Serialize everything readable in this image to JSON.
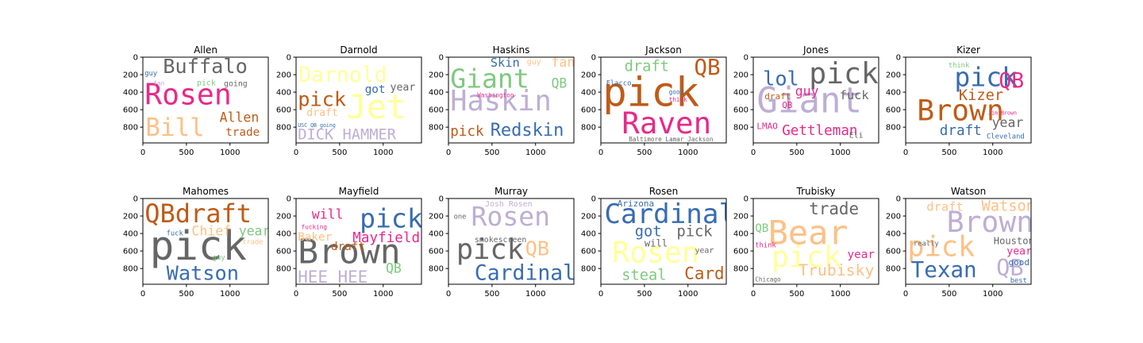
{
  "chart_data": {
    "type": "wordcloud-grid",
    "panel_extent": {
      "x": [
        0,
        1440
      ],
      "y": [
        0,
        980
      ]
    },
    "x_ticks": [
      0,
      500,
      1000
    ],
    "y_ticks": [
      0,
      200,
      400,
      600,
      800
    ],
    "panels": [
      {
        "title": "Allen",
        "words": [
          {
            "text": "Rosen",
            "x": 20,
            "y": 540,
            "size": 330,
            "color": "#e7298a"
          },
          {
            "text": "Buffalo",
            "x": 230,
            "y": 180,
            "size": 230,
            "color": "#666666"
          },
          {
            "text": "Bill",
            "x": 30,
            "y": 900,
            "size": 280,
            "color": "#fdc086"
          },
          {
            "text": "Allen",
            "x": 880,
            "y": 740,
            "size": 150,
            "color": "#bf5b17"
          },
          {
            "text": "trade",
            "x": 950,
            "y": 900,
            "size": 130,
            "color": "#bf5b17"
          },
          {
            "text": "pick",
            "x": 620,
            "y": 320,
            "size": 90,
            "color": "#7fc97f"
          },
          {
            "text": "going",
            "x": 930,
            "y": 330,
            "size": 90,
            "color": "#666666"
          },
          {
            "text": "guy",
            "x": 20,
            "y": 210,
            "size": 80,
            "color": "#386cb0"
          },
          {
            "text": "fan",
            "x": 120,
            "y": 320,
            "size": 70,
            "color": "#beaed4"
          }
        ]
      },
      {
        "title": "Darnold",
        "words": [
          {
            "text": "Darnold",
            "x": 30,
            "y": 280,
            "size": 240,
            "color": "#ffff99"
          },
          {
            "text": "Jet",
            "x": 580,
            "y": 700,
            "size": 380,
            "color": "#ffff99"
          },
          {
            "text": "pick",
            "x": 20,
            "y": 560,
            "size": 230,
            "color": "#bf5b17"
          },
          {
            "text": "got",
            "x": 790,
            "y": 410,
            "size": 130,
            "color": "#386cb0"
          },
          {
            "text": "year",
            "x": 1080,
            "y": 380,
            "size": 120,
            "color": "#666666"
          },
          {
            "text": "DICK HAMMER",
            "x": 20,
            "y": 940,
            "size": 170,
            "color": "#beaed4"
          },
          {
            "text": "USC QB going",
            "x": 20,
            "y": 800,
            "size": 60,
            "color": "#386cb0"
          },
          {
            "text": "draft",
            "x": 120,
            "y": 670,
            "size": 120,
            "color": "#fdc086"
          }
        ]
      },
      {
        "title": "Haskins",
        "words": [
          {
            "text": "Haskin",
            "x": 20,
            "y": 610,
            "size": 320,
            "color": "#beaed4"
          },
          {
            "text": "Giant",
            "x": 20,
            "y": 350,
            "size": 300,
            "color": "#7fc97f"
          },
          {
            "text": "Skin",
            "x": 480,
            "y": 110,
            "size": 140,
            "color": "#386cb0"
          },
          {
            "text": "Redskin",
            "x": 480,
            "y": 900,
            "size": 200,
            "color": "#386cb0"
          },
          {
            "text": "pick",
            "x": 20,
            "y": 900,
            "size": 160,
            "color": "#bf5b17"
          },
          {
            "text": "QB",
            "x": 1180,
            "y": 350,
            "size": 150,
            "color": "#7fc97f"
          },
          {
            "text": "fan",
            "x": 1180,
            "y": 110,
            "size": 150,
            "color": "#fdc086"
          },
          {
            "text": "Washington",
            "x": 330,
            "y": 460,
            "size": 70,
            "color": "#e7298a"
          },
          {
            "text": "guy",
            "x": 900,
            "y": 80,
            "size": 90,
            "color": "#fdc086"
          }
        ]
      },
      {
        "title": "Jackson",
        "words": [
          {
            "text": "pick",
            "x": 20,
            "y": 560,
            "size": 460,
            "color": "#bf5b17"
          },
          {
            "text": "Raven",
            "x": 240,
            "y": 870,
            "size": 340,
            "color": "#e7298a"
          },
          {
            "text": "QB",
            "x": 1070,
            "y": 200,
            "size": 250,
            "color": "#bf5b17"
          },
          {
            "text": "draft",
            "x": 270,
            "y": 160,
            "size": 170,
            "color": "#7fc97f"
          },
          {
            "text": "Flacco",
            "x": 60,
            "y": 320,
            "size": 80,
            "color": "#386cb0"
          },
          {
            "text": "Baltimore Lamar Jackson",
            "x": 320,
            "y": 960,
            "size": 70,
            "color": "#666666"
          },
          {
            "text": "good",
            "x": 780,
            "y": 420,
            "size": 70,
            "color": "#386cb0"
          },
          {
            "text": "think",
            "x": 780,
            "y": 510,
            "size": 70,
            "color": "#e7298a"
          }
        ]
      },
      {
        "title": "Jones",
        "words": [
          {
            "text": "Giant",
            "x": 40,
            "y": 630,
            "size": 400,
            "color": "#beaed4"
          },
          {
            "text": "pick",
            "x": 640,
            "y": 300,
            "size": 330,
            "color": "#666666"
          },
          {
            "text": "lol",
            "x": 110,
            "y": 320,
            "size": 230,
            "color": "#386cb0"
          },
          {
            "text": "guy",
            "x": 480,
            "y": 440,
            "size": 150,
            "color": "#e7298a"
          },
          {
            "text": "fuck",
            "x": 990,
            "y": 480,
            "size": 140,
            "color": "#666666"
          },
          {
            "text": "draft",
            "x": 130,
            "y": 480,
            "size": 100,
            "color": "#bf5b17"
          },
          {
            "text": "QB",
            "x": 330,
            "y": 580,
            "size": 100,
            "color": "#e7298a"
          },
          {
            "text": "LMAO",
            "x": 40,
            "y": 820,
            "size": 100,
            "color": "#e7298a"
          },
          {
            "text": "Gettleman",
            "x": 330,
            "y": 890,
            "size": 160,
            "color": "#e7298a"
          },
          {
            "text": "Eli",
            "x": 1100,
            "y": 920,
            "size": 90,
            "color": "#666666"
          }
        ]
      },
      {
        "title": "Kizer",
        "words": [
          {
            "text": "Brown",
            "x": 130,
            "y": 720,
            "size": 330,
            "color": "#bf5b17"
          },
          {
            "text": "pick",
            "x": 560,
            "y": 330,
            "size": 300,
            "color": "#386cb0"
          },
          {
            "text": "QB",
            "x": 1070,
            "y": 350,
            "size": 240,
            "color": "#e7298a"
          },
          {
            "text": "Kizer",
            "x": 610,
            "y": 490,
            "size": 170,
            "color": "#bf5b17"
          },
          {
            "text": "year",
            "x": 990,
            "y": 800,
            "size": 150,
            "color": "#666666"
          },
          {
            "text": "draft",
            "x": 390,
            "y": 890,
            "size": 160,
            "color": "#386cb0"
          },
          {
            "text": "Cleveland",
            "x": 930,
            "y": 930,
            "size": 80,
            "color": "#386cb0"
          },
          {
            "text": "think",
            "x": 490,
            "y": 120,
            "size": 80,
            "color": "#7fc97f"
          },
          {
            "text": "Jim Brown",
            "x": 950,
            "y": 660,
            "size": 60,
            "color": "#e7298a"
          }
        ]
      },
      {
        "title": "Mahomes",
        "words": [
          {
            "text": "pick",
            "x": 80,
            "y": 700,
            "size": 460,
            "color": "#666666"
          },
          {
            "text": "QBdraft",
            "x": 20,
            "y": 270,
            "size": 290,
            "color": "#bf5b17"
          },
          {
            "text": "Watson",
            "x": 270,
            "y": 930,
            "size": 230,
            "color": "#386cb0"
          },
          {
            "text": "Chief",
            "x": 560,
            "y": 420,
            "size": 150,
            "color": "#fdc086"
          },
          {
            "text": "year",
            "x": 1100,
            "y": 420,
            "size": 150,
            "color": "#7fc97f"
          },
          {
            "text": "guy",
            "x": 800,
            "y": 700,
            "size": 80,
            "color": "#7fc97f"
          },
          {
            "text": "fuck",
            "x": 270,
            "y": 420,
            "size": 80,
            "color": "#386cb0"
          },
          {
            "text": "trade",
            "x": 1140,
            "y": 520,
            "size": 80,
            "color": "#fdc086"
          }
        ]
      },
      {
        "title": "Mayfield",
        "words": [
          {
            "text": "Brown",
            "x": 20,
            "y": 740,
            "size": 390,
            "color": "#666666"
          },
          {
            "text": "pick",
            "x": 730,
            "y": 330,
            "size": 300,
            "color": "#386cb0"
          },
          {
            "text": "Mayfield",
            "x": 650,
            "y": 500,
            "size": 160,
            "color": "#e7298a"
          },
          {
            "text": "will",
            "x": 180,
            "y": 230,
            "size": 150,
            "color": "#e7298a"
          },
          {
            "text": "Baker",
            "x": 20,
            "y": 480,
            "size": 130,
            "color": "#fdc086"
          },
          {
            "text": "draft",
            "x": 400,
            "y": 590,
            "size": 130,
            "color": "#bf5b17"
          },
          {
            "text": "HEE HEE",
            "x": 20,
            "y": 960,
            "size": 190,
            "color": "#beaed4"
          },
          {
            "text": "QB",
            "x": 1030,
            "y": 850,
            "size": 150,
            "color": "#7fc97f"
          },
          {
            "text": "fucking",
            "x": 60,
            "y": 350,
            "size": 70,
            "color": "#e7298a"
          }
        ]
      },
      {
        "title": "Murray",
        "words": [
          {
            "text": "Rosen",
            "x": 260,
            "y": 310,
            "size": 300,
            "color": "#beaed4"
          },
          {
            "text": "pick",
            "x": 90,
            "y": 690,
            "size": 320,
            "color": "#666666"
          },
          {
            "text": "Cardinal",
            "x": 300,
            "y": 930,
            "size": 240,
            "color": "#386cb0"
          },
          {
            "text": "QB",
            "x": 880,
            "y": 650,
            "size": 230,
            "color": "#fdc086"
          },
          {
            "text": "Josh Rosen",
            "x": 420,
            "y": 90,
            "size": 90,
            "color": "#beaed4"
          },
          {
            "text": "smokescreen",
            "x": 300,
            "y": 500,
            "size": 90,
            "color": "#666666"
          },
          {
            "text": "one",
            "x": 60,
            "y": 230,
            "size": 80,
            "color": "#666666"
          }
        ]
      },
      {
        "title": "Rosen",
        "words": [
          {
            "text": "Cardinal",
            "x": 40,
            "y": 280,
            "size": 310,
            "color": "#386cb0"
          },
          {
            "text": "Rosen",
            "x": 130,
            "y": 730,
            "size": 330,
            "color": "#ffff99"
          },
          {
            "text": "steal",
            "x": 240,
            "y": 930,
            "size": 170,
            "color": "#7fc97f"
          },
          {
            "text": "Card",
            "x": 960,
            "y": 920,
            "size": 190,
            "color": "#bf5b17"
          },
          {
            "text": "pick",
            "x": 870,
            "y": 430,
            "size": 170,
            "color": "#666666"
          },
          {
            "text": "got",
            "x": 390,
            "y": 430,
            "size": 170,
            "color": "#386cb0"
          },
          {
            "text": "Arizona",
            "x": 190,
            "y": 90,
            "size": 100,
            "color": "#386cb0"
          },
          {
            "text": "year",
            "x": 1080,
            "y": 620,
            "size": 90,
            "color": "#666666"
          },
          {
            "text": "will",
            "x": 500,
            "y": 550,
            "size": 110,
            "color": "#666666"
          }
        ]
      },
      {
        "title": "Trubisky",
        "words": [
          {
            "text": "Bear",
            "x": 170,
            "y": 520,
            "size": 380,
            "color": "#fdc086"
          },
          {
            "text": "pick",
            "x": 210,
            "y": 780,
            "size": 330,
            "color": "#ffff99"
          },
          {
            "text": "trade",
            "x": 640,
            "y": 180,
            "size": 190,
            "color": "#666666"
          },
          {
            "text": "Trubisky",
            "x": 520,
            "y": 880,
            "size": 180,
            "color": "#fdc086"
          },
          {
            "text": "year",
            "x": 1080,
            "y": 680,
            "size": 130,
            "color": "#e7298a"
          },
          {
            "text": "QB",
            "x": 20,
            "y": 380,
            "size": 130,
            "color": "#7fc97f"
          },
          {
            "text": "think",
            "x": 20,
            "y": 560,
            "size": 80,
            "color": "#e7298a"
          },
          {
            "text": "Chicago",
            "x": 20,
            "y": 950,
            "size": 70,
            "color": "#666666"
          }
        ]
      },
      {
        "title": "Watson",
        "words": [
          {
            "text": "Brown",
            "x": 470,
            "y": 380,
            "size": 330,
            "color": "#beaed4"
          },
          {
            "text": "pick",
            "x": 20,
            "y": 660,
            "size": 320,
            "color": "#fdc086"
          },
          {
            "text": "Texan",
            "x": 60,
            "y": 900,
            "size": 250,
            "color": "#386cb0"
          },
          {
            "text": "QB",
            "x": 1040,
            "y": 880,
            "size": 260,
            "color": "#beaed4"
          },
          {
            "text": "draft",
            "x": 240,
            "y": 140,
            "size": 140,
            "color": "#fdc086"
          },
          {
            "text": "Watson",
            "x": 870,
            "y": 140,
            "size": 170,
            "color": "#fdc086"
          },
          {
            "text": "Houston",
            "x": 1010,
            "y": 520,
            "size": 110,
            "color": "#666666"
          },
          {
            "text": "year",
            "x": 1160,
            "y": 640,
            "size": 120,
            "color": "#e7298a"
          },
          {
            "text": "good",
            "x": 1180,
            "y": 760,
            "size": 100,
            "color": "#386cb0"
          },
          {
            "text": "really",
            "x": 90,
            "y": 540,
            "size": 80,
            "color": "#666666"
          },
          {
            "text": "best",
            "x": 1200,
            "y": 960,
            "size": 80,
            "color": "#386cb0"
          }
        ]
      }
    ]
  }
}
